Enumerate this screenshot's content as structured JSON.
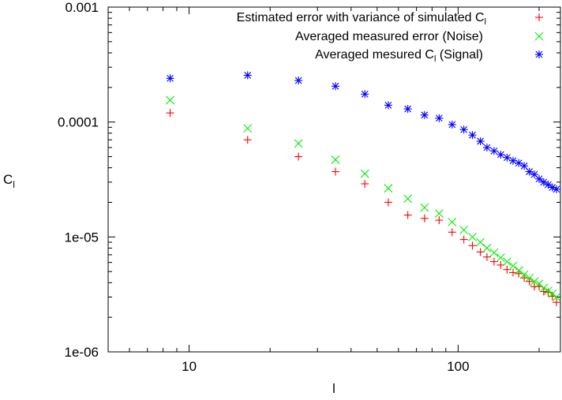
{
  "chart_data": {
    "type": "scatter",
    "title": "",
    "xlabel": "l",
    "ylabel_main": "C",
    "ylabel_sub": "l",
    "xscale": "log",
    "yscale": "log",
    "xlim": [
      5,
      240
    ],
    "ylim": [
      1e-06,
      0.001
    ],
    "x_ticks": [
      {
        "value": 10,
        "label": "10"
      },
      {
        "value": 100,
        "label": "100"
      }
    ],
    "y_ticks": [
      {
        "value": 1e-06,
        "label": "1e-06"
      },
      {
        "value": 1e-05,
        "label": "1e-05"
      },
      {
        "value": 0.0001,
        "label": "0.0001"
      },
      {
        "value": 0.001,
        "label": "0.001"
      }
    ],
    "legend_position": "top-right",
    "series": [
      {
        "name_main": "Estimated error with variance of simulated C",
        "name_sub": "l",
        "name_tail": "",
        "marker": "plus",
        "color": "#ff0000",
        "x": [
          8.5,
          16.5,
          25.5,
          35,
          45,
          55,
          65,
          75,
          85,
          95,
          105,
          113,
          121,
          128,
          136,
          144,
          152,
          160,
          168,
          176,
          184,
          192,
          200,
          208,
          216,
          224,
          232
        ],
        "y": [
          0.00012,
          7e-05,
          5e-05,
          3.7e-05,
          2.9e-05,
          2e-05,
          1.55e-05,
          1.45e-05,
          1.4e-05,
          1.1e-05,
          9.5e-06,
          8.4e-06,
          7.4e-06,
          6.7e-06,
          6.1e-06,
          5.7e-06,
          5.2e-06,
          4.9e-06,
          4.8e-06,
          4.4e-06,
          4.1e-06,
          3.7e-06,
          3.7e-06,
          3.35e-06,
          3.3e-06,
          3.05e-06,
          2.7e-06
        ]
      },
      {
        "name_main": "Averaged measured error (Noise)",
        "name_sub": "",
        "name_tail": "",
        "marker": "cross",
        "color": "#00ee00",
        "x": [
          8.5,
          16.5,
          25.5,
          35,
          45,
          55,
          65,
          75,
          85,
          95,
          105,
          113,
          121,
          128,
          136,
          144,
          152,
          160,
          168,
          176,
          184,
          192,
          200,
          208,
          216,
          224,
          232
        ],
        "y": [
          0.000155,
          8.8e-05,
          6.5e-05,
          4.7e-05,
          3.55e-05,
          2.65e-05,
          2.15e-05,
          1.8e-05,
          1.6e-05,
          1.35e-05,
          1.15e-05,
          1e-05,
          9e-06,
          8e-06,
          7.3e-06,
          6.6e-06,
          6.1e-06,
          5.6e-06,
          5.1e-06,
          4.7e-06,
          4.4e-06,
          4.1e-06,
          3.9e-06,
          3.6e-06,
          3.4e-06,
          3.2e-06,
          3e-06
        ]
      },
      {
        "name_main": "Averaged mesured C",
        "name_sub": "l",
        "name_tail": " (Signal)",
        "marker": "star",
        "color": "#0000ff",
        "x": [
          8.5,
          16.5,
          25.5,
          35,
          45,
          55,
          65,
          75,
          85,
          95,
          105,
          113,
          121,
          128,
          136,
          144,
          152,
          160,
          168,
          176,
          184,
          192,
          200,
          208,
          216,
          224,
          232
        ],
        "y": [
          0.00024,
          0.000255,
          0.00023,
          0.000205,
          0.000175,
          0.00014,
          0.00013,
          0.000115,
          0.000108,
          9.5e-05,
          8.6e-05,
          7.7e-05,
          6.8e-05,
          6e-05,
          5.6e-05,
          5.2e-05,
          4.9e-05,
          4.6e-05,
          4.4e-05,
          4.15e-05,
          3.7e-05,
          3.5e-05,
          3.2e-05,
          3e-05,
          2.85e-05,
          2.7e-05,
          2.6e-05
        ]
      }
    ]
  }
}
